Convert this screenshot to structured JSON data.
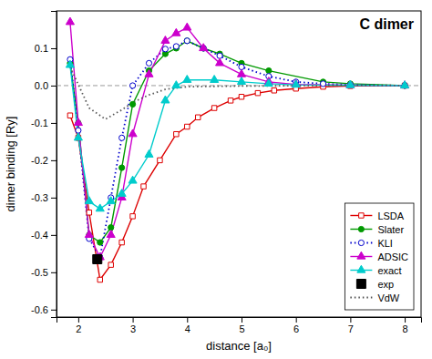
{
  "chart_data": {
    "type": "line",
    "title": "C dimer",
    "x_label": "distance [a₀]",
    "y_label": "dimer binding [Ry]",
    "xlim": [
      1.6,
      8.3
    ],
    "ylim": [
      -0.62,
      0.2
    ],
    "xticks": [
      2,
      3,
      4,
      5,
      6,
      7,
      8
    ],
    "yticks": [
      -0.6,
      -0.5,
      -0.4,
      -0.3,
      -0.2,
      -0.1,
      {
        "value": 0.0,
        "label": "0.0"
      },
      0.1
    ],
    "hlines": [
      0
    ],
    "legend": "bottom-right",
    "series": [
      {
        "name": "LSDA",
        "color": "#dd0000",
        "marker": "square-open",
        "line_style": "solid",
        "x": [
          1.85,
          2.0,
          2.2,
          2.4,
          2.6,
          2.8,
          3.0,
          3.2,
          3.5,
          3.8,
          4.0,
          4.2,
          4.5,
          4.8,
          5.0,
          5.3,
          5.6,
          6.0,
          6.5,
          7.0,
          8.0
        ],
        "values": [
          -0.08,
          -0.14,
          -0.34,
          -0.52,
          -0.48,
          -0.42,
          -0.35,
          -0.27,
          -0.2,
          -0.13,
          -0.11,
          -0.085,
          -0.06,
          -0.04,
          -0.03,
          -0.02,
          -0.013,
          -0.008,
          -0.003,
          -0.001,
          0.0
        ]
      },
      {
        "name": "Slater",
        "color": "#009900",
        "marker": "circle",
        "line_style": "solid",
        "x": [
          1.85,
          2.0,
          2.2,
          2.4,
          2.6,
          2.8,
          3.0,
          3.3,
          3.6,
          3.8,
          4.0,
          4.3,
          4.6,
          5.0,
          5.5,
          6.5,
          7.0,
          8.0
        ],
        "values": [
          0.06,
          -0.1,
          -0.4,
          -0.42,
          -0.38,
          -0.22,
          -0.05,
          0.04,
          0.085,
          0.1,
          0.12,
          0.1,
          0.085,
          0.06,
          0.04,
          0.01,
          0.005,
          0.0
        ]
      },
      {
        "name": "KLI",
        "color": "#0000cc",
        "marker": "circle-open",
        "line_style": "dotted",
        "x": [
          1.85,
          2.0,
          2.2,
          2.4,
          2.6,
          2.8,
          3.0,
          3.3,
          3.6,
          3.8,
          4.0,
          4.3,
          4.6,
          5.0,
          5.5,
          6.0,
          6.5,
          7.0,
          8.0
        ],
        "values": [
          0.07,
          -0.12,
          -0.41,
          -0.46,
          -0.3,
          -0.14,
          0.0,
          0.06,
          0.098,
          0.105,
          0.12,
          0.1,
          0.08,
          0.05,
          0.025,
          0.01,
          0.005,
          0.002,
          0.0
        ]
      },
      {
        "name": "ADSIC",
        "color": "#cc00cc",
        "marker": "triangle",
        "line_style": "solid",
        "x": [
          1.85,
          2.0,
          2.2,
          2.4,
          2.6,
          2.8,
          3.0,
          3.3,
          3.6,
          3.8,
          4.0,
          4.3,
          4.6,
          5.0,
          5.5,
          6.0,
          7.0,
          8.0
        ],
        "values": [
          0.17,
          -0.1,
          -0.4,
          -0.46,
          -0.4,
          -0.3,
          -0.13,
          0.03,
          0.12,
          0.14,
          0.155,
          0.1,
          0.06,
          0.03,
          0.01,
          0.003,
          0.001,
          0.0
        ]
      },
      {
        "name": "exact",
        "color": "#00cccc",
        "marker": "triangle",
        "line_style": "solid",
        "x": [
          1.85,
          2.0,
          2.2,
          2.4,
          2.6,
          2.8,
          3.0,
          3.3,
          3.6,
          3.8,
          4.0,
          4.5,
          5.0,
          5.5,
          6.0,
          7.0,
          8.0
        ],
        "values": [
          0.055,
          -0.14,
          -0.31,
          -0.33,
          -0.31,
          -0.29,
          -0.255,
          -0.185,
          -0.04,
          0.0,
          0.015,
          0.015,
          0.01,
          0.005,
          0.002,
          0.001,
          0.0
        ]
      },
      {
        "name": "exp",
        "type": "scatter",
        "color": "#000000",
        "marker": "square-large",
        "x": [
          2.35
        ],
        "values": [
          -0.465
        ]
      },
      {
        "name": "VdW",
        "color": "#555555",
        "line_style": "dotted",
        "x": [
          1.85,
          2.2,
          2.5,
          2.8,
          3.0,
          3.3,
          3.6,
          4.0,
          4.5,
          5.0,
          5.5,
          6.0,
          6.5,
          7.0,
          8.0
        ],
        "values": [
          0.05,
          -0.06,
          -0.09,
          -0.065,
          -0.045,
          -0.025,
          -0.01,
          -0.003,
          -0.002,
          -0.001,
          -0.001,
          0.0,
          0.0,
          0.0,
          0.0
        ]
      }
    ]
  }
}
